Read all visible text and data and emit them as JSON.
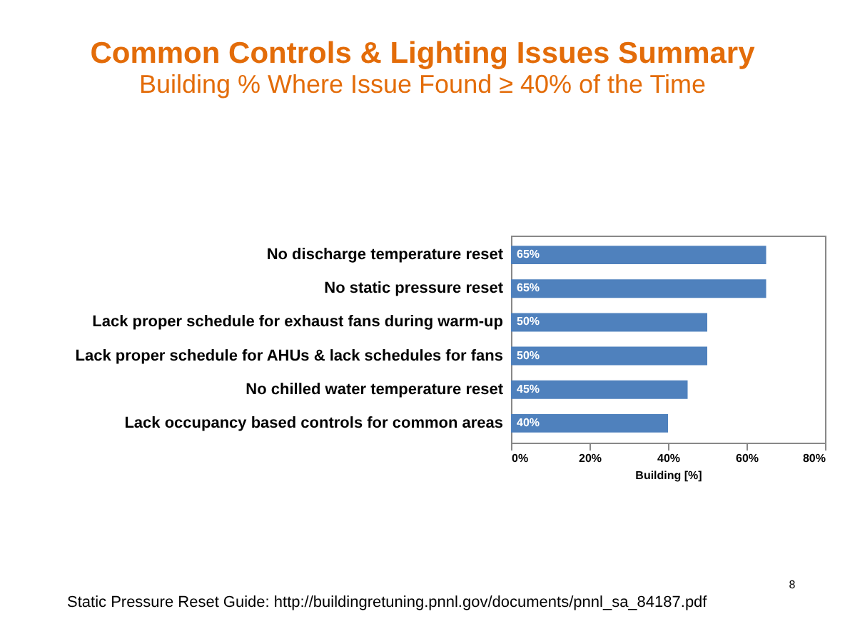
{
  "chart_data": {
    "type": "bar",
    "orientation": "horizontal",
    "title": "Common Controls & Lighting Issues Summary",
    "subtitle": "Building % Where Issue Found ≥ 40% of the Time",
    "categories": [
      "No discharge temperature reset",
      "No static pressure reset",
      "Lack proper schedule for exhaust fans during warm-up",
      "Lack proper schedule for AHUs & lack schedules for fans",
      "No chilled water temperature reset",
      "Lack occupancy based controls for common areas"
    ],
    "values": [
      65,
      65,
      50,
      50,
      45,
      40
    ],
    "color": "#4f81bd",
    "value_labels": [
      "65%",
      "65%",
      "50%",
      "50%",
      "45%",
      "40%"
    ],
    "xlim": [
      0,
      80
    ],
    "xticks": [
      {
        "value": 0,
        "label": "0%"
      },
      {
        "value": 20,
        "label": "20%"
      },
      {
        "value": 40,
        "label": "40%"
      },
      {
        "value": 60,
        "label": "60%"
      },
      {
        "value": 80,
        "label": "80%"
      }
    ],
    "xlabel": "Building [%]",
    "grid": false,
    "annotations": [
      "Static Pressure Reset Guide: http://buildingretuning.pnnl.gov/documents/pnnl_sa_84187.pdf",
      "8"
    ]
  }
}
